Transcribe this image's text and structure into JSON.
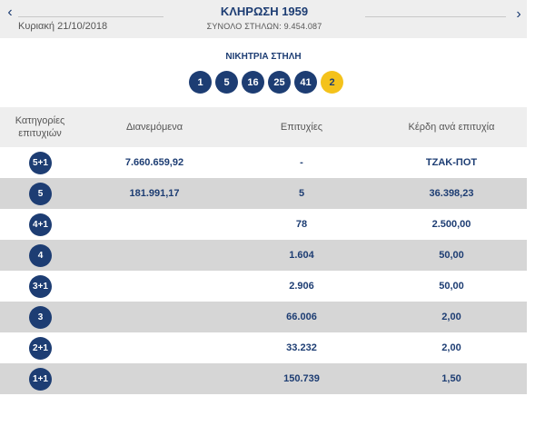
{
  "header": {
    "date": "Κυριακή 21/10/2018",
    "draw_title": "ΚΛΗΡΩΣΗ 1959",
    "total_columns": "ΣΥΝΟΛΟ ΣΤΗΛΩΝ: 9.454.087",
    "prev_icon": "chevron-left-icon",
    "next_icon": "chevron-right-icon"
  },
  "winning": {
    "label": "ΝΙΚΗΤΡΙΑ ΣΤΗΛΗ",
    "numbers": [
      "1",
      "5",
      "16",
      "25",
      "41"
    ],
    "joker": "2",
    "colors": {
      "ball": "#1d3d73",
      "joker": "#f4c21b"
    }
  },
  "table": {
    "headers": {
      "category_line1": "Κατηγορίες",
      "category_line2": "επιτυχιών",
      "distributed": "Διανεμόμενα",
      "winners": "Επιτυχίες",
      "prize": "Κέρδη ανά επιτυχία"
    },
    "rows": [
      {
        "category": "5+1",
        "distributed": "7.660.659,92",
        "winners": "-",
        "prize": "ΤΖΑΚ-ΠΟΤ"
      },
      {
        "category": "5",
        "distributed": "181.991,17",
        "winners": "5",
        "prize": "36.398,23"
      },
      {
        "category": "4+1",
        "distributed": "",
        "winners": "78",
        "prize": "2.500,00"
      },
      {
        "category": "4",
        "distributed": "",
        "winners": "1.604",
        "prize": "50,00"
      },
      {
        "category": "3+1",
        "distributed": "",
        "winners": "2.906",
        "prize": "50,00"
      },
      {
        "category": "3",
        "distributed": "",
        "winners": "66.006",
        "prize": "2,00"
      },
      {
        "category": "2+1",
        "distributed": "",
        "winners": "33.232",
        "prize": "2,00"
      },
      {
        "category": "1+1",
        "distributed": "",
        "winners": "150.739",
        "prize": "1,50"
      }
    ]
  }
}
